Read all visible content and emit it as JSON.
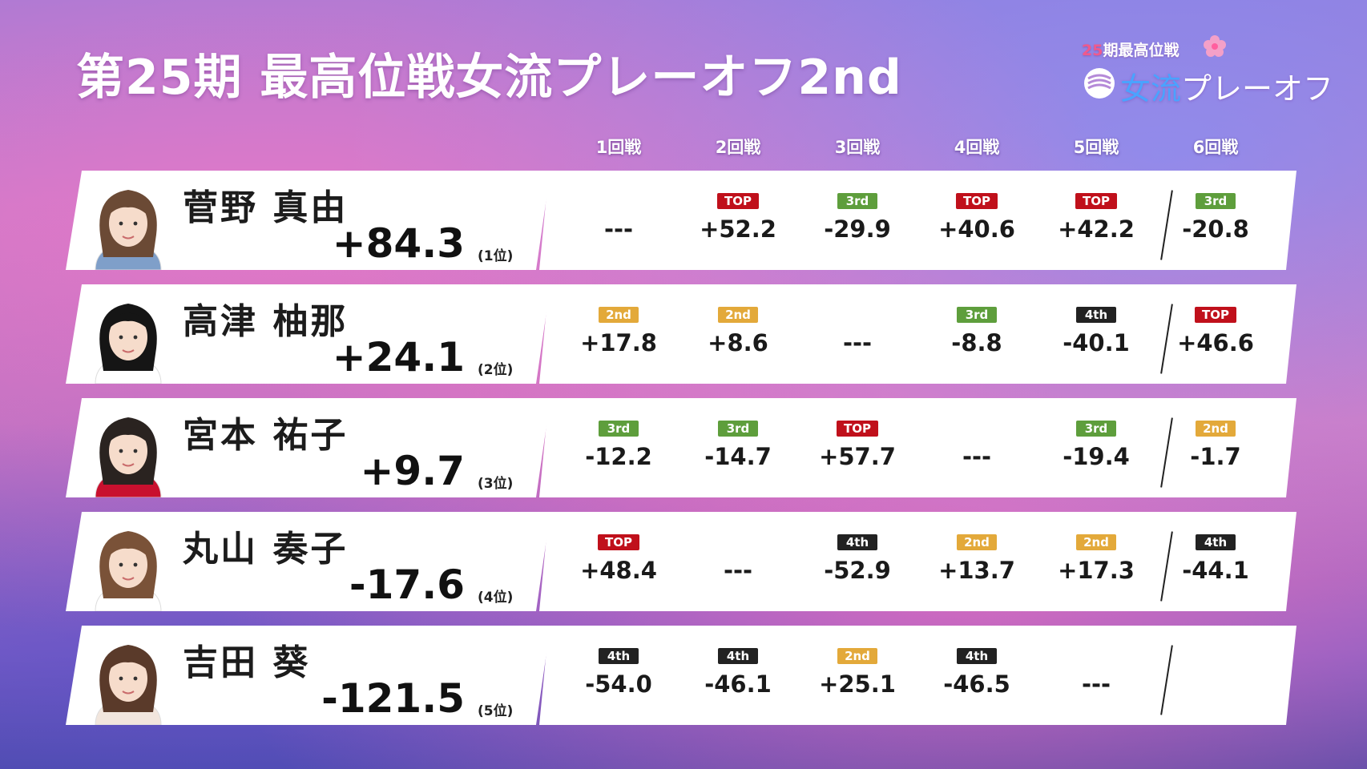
{
  "title": "第25期 最高位戦女流プレーオフ2nd",
  "logo": {
    "line1_num": "25",
    "line1_text": "期最高位戦",
    "main_prefix": "女流",
    "main_rest": "プレーオフ"
  },
  "columns": [
    "1回戦",
    "2回戦",
    "3回戦",
    "4回戦",
    "5回戦",
    "6回戦"
  ],
  "badge_colors": {
    "TOP": "#c0101b",
    "2nd": "#e3a93a",
    "3rd": "#5e9e3c",
    "4th": "#222222"
  },
  "players": [
    {
      "name": "菅野 真由",
      "total": "+84.3",
      "rank": "(1位)",
      "games": [
        {
          "badge": "",
          "score": "---"
        },
        {
          "badge": "TOP",
          "score": "+52.2"
        },
        {
          "badge": "3rd",
          "score": "-29.9"
        },
        {
          "badge": "TOP",
          "score": "+40.6"
        },
        {
          "badge": "TOP",
          "score": "+42.2"
        },
        {
          "badge": "3rd",
          "score": "-20.8"
        }
      ]
    },
    {
      "name": "高津 柚那",
      "total": "+24.1",
      "rank": "(2位)",
      "games": [
        {
          "badge": "2nd",
          "score": "+17.8"
        },
        {
          "badge": "2nd",
          "score": "+8.6"
        },
        {
          "badge": "",
          "score": "---"
        },
        {
          "badge": "3rd",
          "score": "-8.8"
        },
        {
          "badge": "4th",
          "score": "-40.1"
        },
        {
          "badge": "TOP",
          "score": "+46.6"
        }
      ]
    },
    {
      "name": "宮本 祐子",
      "total": "+9.7",
      "rank": "(3位)",
      "games": [
        {
          "badge": "3rd",
          "score": "-12.2"
        },
        {
          "badge": "3rd",
          "score": "-14.7"
        },
        {
          "badge": "TOP",
          "score": "+57.7"
        },
        {
          "badge": "",
          "score": "---"
        },
        {
          "badge": "3rd",
          "score": "-19.4"
        },
        {
          "badge": "2nd",
          "score": "-1.7"
        }
      ]
    },
    {
      "name": "丸山 奏子",
      "total": "-17.6",
      "rank": "(4位)",
      "games": [
        {
          "badge": "TOP",
          "score": "+48.4"
        },
        {
          "badge": "",
          "score": "---"
        },
        {
          "badge": "4th",
          "score": "-52.9"
        },
        {
          "badge": "2nd",
          "score": "+13.7"
        },
        {
          "badge": "2nd",
          "score": "+17.3"
        },
        {
          "badge": "4th",
          "score": "-44.1"
        }
      ]
    },
    {
      "name": "吉田 葵",
      "total": "-121.5",
      "rank": "(5位)",
      "games": [
        {
          "badge": "4th",
          "score": "-54.0"
        },
        {
          "badge": "4th",
          "score": "-46.1"
        },
        {
          "badge": "2nd",
          "score": "+25.1"
        },
        {
          "badge": "4th",
          "score": "-46.5"
        },
        {
          "badge": "",
          "score": "---"
        },
        {
          "badge": "",
          "score": ""
        }
      ]
    }
  ]
}
